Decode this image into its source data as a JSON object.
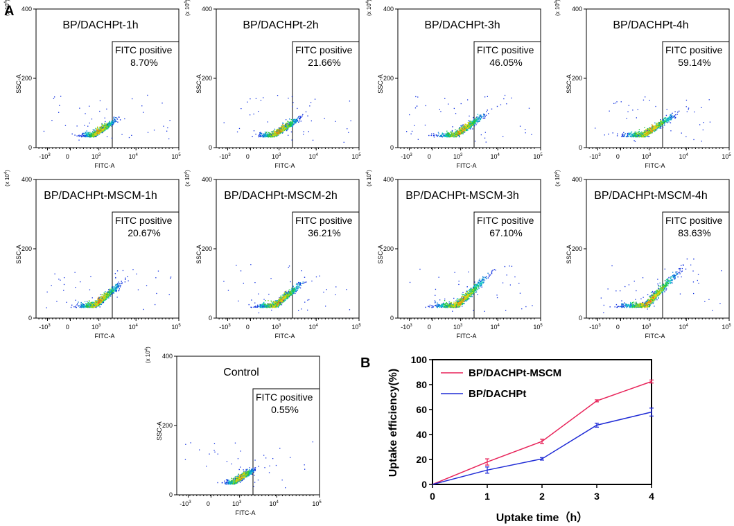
{
  "panel_labels": {
    "a": "A",
    "b": "B"
  },
  "flow_common": {
    "gate_label": "FITC positive",
    "x_axis_label": "FITC-A",
    "y_axis_label": "SSC-A",
    "y_multiplier": "(x 10",
    "y_multiplier_exp": "4",
    "y_multiplier_close": ")",
    "y_ticks": [
      "0",
      "200",
      "400"
    ],
    "x_ticks": [
      {
        "base": "-10",
        "exp": "3"
      },
      {
        "base": "0",
        "exp": ""
      },
      {
        "base": "10",
        "exp": "3"
      },
      {
        "base": "10",
        "exp": "4"
      },
      {
        "base": "10",
        "exp": "5"
      }
    ]
  },
  "chart_data": [
    {
      "type": "scatter",
      "title": "BP/DACHPt-1h",
      "gate_percent": "8.70%",
      "spread": 0.55,
      "height": 1.0
    },
    {
      "type": "scatter",
      "title": "BP/DACHPt-2h",
      "gate_percent": "21.66%",
      "spread": 0.7,
      "height": 1.05
    },
    {
      "type": "scatter",
      "title": "BP/DACHPt-3h",
      "gate_percent": "46.05%",
      "spread": 0.85,
      "height": 1.15
    },
    {
      "type": "scatter",
      "title": "BP/DACHPt-4h",
      "gate_percent": "59.14%",
      "spread": 0.95,
      "height": 1.1
    },
    {
      "type": "scatter",
      "title": "BP/DACHPt-MSCM-1h",
      "gate_percent": "20.67%",
      "spread": 0.75,
      "height": 1.35
    },
    {
      "type": "scatter",
      "title": "BP/DACHPt-MSCM-2h",
      "gate_percent": "36.21%",
      "spread": 0.85,
      "height": 1.35
    },
    {
      "type": "scatter",
      "title": "BP/DACHPt-MSCM-3h",
      "gate_percent": "67.10%",
      "spread": 1.0,
      "height": 1.6
    },
    {
      "type": "scatter",
      "title": "BP/DACHPt-MSCM-4h",
      "gate_percent": "83.63%",
      "spread": 1.1,
      "height": 1.8
    },
    {
      "type": "scatter",
      "title": "Control",
      "gate_percent": "0.55%",
      "spread": 0.45,
      "height": 0.9
    },
    {
      "type": "line",
      "xlabel": "Uptake time（h）",
      "ylabel": "Uptake efficiency(%)",
      "xlim": [
        0,
        4
      ],
      "ylim": [
        0,
        100
      ],
      "x_ticks": [
        "0",
        "1",
        "2",
        "3",
        "4"
      ],
      "y_ticks": [
        "0",
        "20",
        "40",
        "60",
        "80",
        "100"
      ],
      "x": [
        0,
        1,
        2,
        3,
        4
      ],
      "series": [
        {
          "name": "BP/DACHPt-MSCM",
          "color": "#e8245a",
          "values": [
            0,
            18,
            34.5,
            67,
            82.5
          ],
          "errors": [
            0,
            2.5,
            1.8,
            0.8,
            1.2
          ]
        },
        {
          "name": "BP/DACHPt",
          "color": "#1f2bd6",
          "values": [
            0,
            11.5,
            20.5,
            47.5,
            58
          ],
          "errors": [
            0,
            2.5,
            1.0,
            1.6,
            3.2
          ]
        }
      ]
    }
  ]
}
